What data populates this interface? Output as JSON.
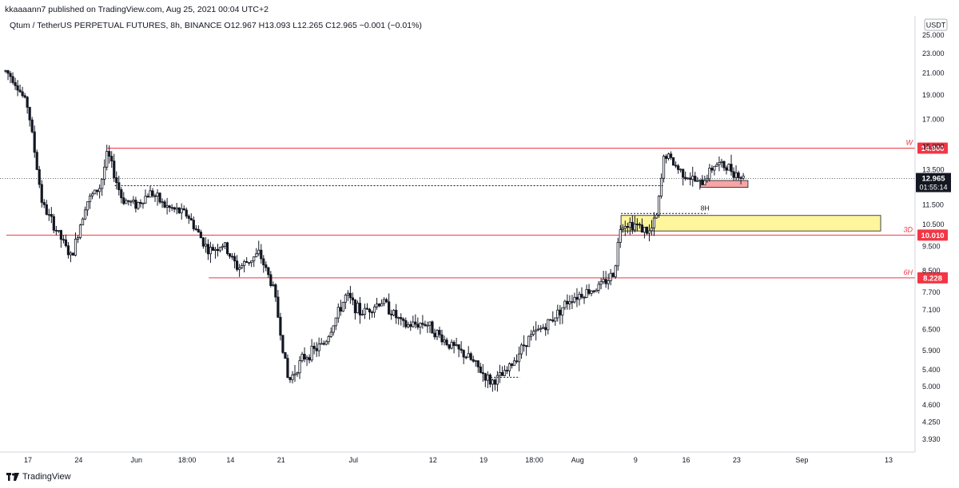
{
  "header": {
    "published": "kkaaaann7 published on TradingView.com, Aug 25, 2021 00:04 UTC+2",
    "symbol_line": "Qtum / TetherUS PERPETUAL FUTURES, 8h, BINANCE  O12.967  H13.093  L12.265  C12.965  −0.001 (−0.01%)"
  },
  "footer": {
    "brand": "TradingView"
  },
  "price_axis": {
    "currency": "USDT",
    "ticks": [
      "25.000",
      "23.000",
      "21.000",
      "19.000",
      "17.000",
      "15.000",
      "13.500",
      "11.500",
      "10.500",
      "9.500",
      "8.500",
      "7.700",
      "7.100",
      "6.500",
      "5.900",
      "5.400",
      "5.000",
      "4.600",
      "4.250",
      "3.930"
    ]
  },
  "time_axis": {
    "ticks": [
      "17",
      "24",
      "Jun",
      "18:00",
      "14",
      "21",
      "Jul",
      "12",
      "19",
      "18:00",
      "Aug",
      "9",
      "16",
      "23",
      "Sep",
      "13"
    ]
  },
  "levels": [
    {
      "tag": "W",
      "price_label": "14.900",
      "price": 14.9
    },
    {
      "tag": "3D",
      "price_label": "10.010",
      "price": 10.01
    },
    {
      "tag": "6H",
      "price_label": "8.228",
      "price": 8.228
    }
  ],
  "current": {
    "price_label": "12.965",
    "countdown": "01:55:14",
    "price": 12.965
  },
  "annotations": {
    "dotted_label": "8H"
  },
  "colors": {
    "level_line": "#f23645",
    "candle": "#131722",
    "zone_yellow": "#fff59d",
    "zone_red": "#f8a5a5",
    "axis_text": "#131722"
  },
  "chart_data": {
    "type": "candlestick",
    "title": "Qtum / TetherUS PERPETUAL FUTURES, 8h, BINANCE",
    "xlabel": "",
    "ylabel": "",
    "y_scale": "log",
    "ylim": [
      3.8,
      26
    ],
    "last_bar": {
      "open": 12.967,
      "high": 13.093,
      "low": 12.265,
      "close": 12.965,
      "change": -0.001,
      "change_pct": -0.01
    },
    "price_path": [
      {
        "date": "2021-05-13",
        "price": 21.8
      },
      {
        "date": "2021-05-15",
        "price": 20.5
      },
      {
        "date": "2021-05-17",
        "price": 18.0
      },
      {
        "date": "2021-05-19",
        "price": 11.5
      },
      {
        "date": "2021-05-21",
        "price": 10.2
      },
      {
        "date": "2021-05-23",
        "price": 9.0
      },
      {
        "date": "2021-05-25",
        "price": 11.6
      },
      {
        "date": "2021-05-27",
        "price": 12.5
      },
      {
        "date": "2021-05-28",
        "price": 14.6
      },
      {
        "date": "2021-05-30",
        "price": 11.8
      },
      {
        "date": "2021-06-01",
        "price": 11.5
      },
      {
        "date": "2021-06-03",
        "price": 12.2
      },
      {
        "date": "2021-06-05",
        "price": 11.4
      },
      {
        "date": "2021-06-08",
        "price": 11.0
      },
      {
        "date": "2021-06-11",
        "price": 9.3
      },
      {
        "date": "2021-06-13",
        "price": 9.6
      },
      {
        "date": "2021-06-15",
        "price": 8.6
      },
      {
        "date": "2021-06-18",
        "price": 9.2
      },
      {
        "date": "2021-06-20",
        "price": 7.8
      },
      {
        "date": "2021-06-22",
        "price": 5.1
      },
      {
        "date": "2021-06-24",
        "price": 5.7
      },
      {
        "date": "2021-06-27",
        "price": 6.1
      },
      {
        "date": "2021-06-30",
        "price": 7.6
      },
      {
        "date": "2021-07-02",
        "price": 7.0
      },
      {
        "date": "2021-07-05",
        "price": 7.4
      },
      {
        "date": "2021-07-08",
        "price": 6.6
      },
      {
        "date": "2021-07-11",
        "price": 6.7
      },
      {
        "date": "2021-07-14",
        "price": 6.1
      },
      {
        "date": "2021-07-17",
        "price": 5.7
      },
      {
        "date": "2021-07-20",
        "price": 5.1
      },
      {
        "date": "2021-07-22",
        "price": 5.3
      },
      {
        "date": "2021-07-25",
        "price": 6.2
      },
      {
        "date": "2021-07-28",
        "price": 6.7
      },
      {
        "date": "2021-07-31",
        "price": 7.5
      },
      {
        "date": "2021-08-02",
        "price": 7.7
      },
      {
        "date": "2021-08-04",
        "price": 7.9
      },
      {
        "date": "2021-08-06",
        "price": 8.4
      },
      {
        "date": "2021-08-07",
        "price": 10.6
      },
      {
        "date": "2021-08-09",
        "price": 10.5
      },
      {
        "date": "2021-08-11",
        "price": 10.1
      },
      {
        "date": "2021-08-12",
        "price": 11.0
      },
      {
        "date": "2021-08-13",
        "price": 14.6
      },
      {
        "date": "2021-08-15",
        "price": 13.5
      },
      {
        "date": "2021-08-18",
        "price": 12.6
      },
      {
        "date": "2021-08-20",
        "price": 13.9
      },
      {
        "date": "2021-08-22",
        "price": 13.6
      },
      {
        "date": "2021-08-24",
        "price": 12.965
      }
    ]
  }
}
